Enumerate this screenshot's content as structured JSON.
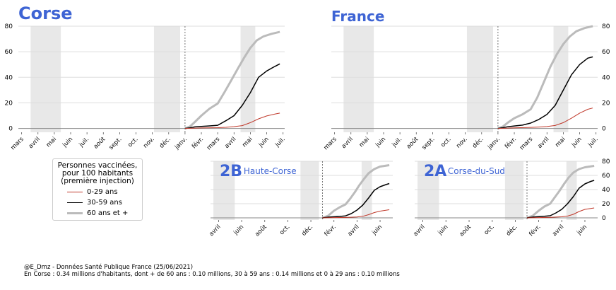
{
  "colors": {
    "young": "#c0392b",
    "middle": "#000000",
    "old": "#bbbbbb",
    "title": "#3e64d4",
    "shade": "#e8e8e8"
  },
  "legend": {
    "title_lines": [
      "Personnes vaccinées,",
      "pour 100 habitants",
      "(première injection)"
    ],
    "labels": [
      "0-29 ans",
      "30-59 ans",
      "60 ans et +"
    ]
  },
  "credit": {
    "line1": "@E_Dmz - Données Santé Publique France (25/06/2021)",
    "line2": "En Corse : 0.34 millions d'habitants, dont + de 60 ans : 0.10 millions, 30 à 59 ans : 0.14 millions et 0 à 29 ans : 0.10 millions"
  },
  "chart_data": [
    {
      "id": "corse",
      "type": "line",
      "title": "Corse",
      "code": "",
      "subtitle": "",
      "x_unit": "months since 2020-03-01",
      "xlim": [
        -0.2,
        16.1
      ],
      "ylim": [
        -3,
        80
      ],
      "yticks": [
        0,
        20,
        40,
        60,
        80
      ],
      "ytick_side": "left",
      "xticks": [
        "mars",
        "avril",
        "mai",
        "juin",
        "juil.",
        "août",
        "sept.",
        "oct.",
        "nov.",
        "déc.",
        "janv.",
        "févr.",
        "mars",
        "avril",
        "mai",
        "juin",
        "juil."
      ],
      "shaded": [
        [
          0.55,
          2.4
        ],
        [
          8.1,
          9.7
        ],
        [
          13.4,
          14.3
        ]
      ],
      "vline": 10.0,
      "series": [
        {
          "key": "young",
          "values": [
            [
              10,
              0
            ],
            [
              10.5,
              0.2
            ],
            [
              11,
              0.4
            ],
            [
              12,
              0.6
            ],
            [
              12.5,
              0.9
            ],
            [
              13,
              1.4
            ],
            [
              13.5,
              2.2
            ],
            [
              14,
              4.5
            ],
            [
              14.5,
              7.5
            ],
            [
              15,
              9.8
            ],
            [
              15.5,
              11.2
            ],
            [
              15.8,
              12
            ]
          ]
        },
        {
          "key": "middle",
          "values": [
            [
              10,
              0
            ],
            [
              10.3,
              0.5
            ],
            [
              10.6,
              1.2
            ],
            [
              11,
              1.6
            ],
            [
              11.5,
              2.0
            ],
            [
              12,
              2.5
            ],
            [
              12.5,
              6
            ],
            [
              13,
              10
            ],
            [
              13.5,
              18
            ],
            [
              14,
              28
            ],
            [
              14.5,
              40
            ],
            [
              15,
              45
            ],
            [
              15.5,
              48.5
            ],
            [
              15.8,
              50.5
            ]
          ]
        },
        {
          "key": "old",
          "values": [
            [
              10,
              0
            ],
            [
              10.3,
              1.5
            ],
            [
              10.6,
              5
            ],
            [
              11,
              10
            ],
            [
              11.5,
              15.5
            ],
            [
              12,
              19.5
            ],
            [
              12.4,
              28
            ],
            [
              12.8,
              37
            ],
            [
              13.2,
              46
            ],
            [
              13.6,
              55
            ],
            [
              14,
              63
            ],
            [
              14.4,
              69
            ],
            [
              14.8,
              72
            ],
            [
              15.3,
              74
            ],
            [
              15.8,
              75.5
            ]
          ]
        }
      ]
    },
    {
      "id": "france",
      "type": "line",
      "title": "France",
      "code": "",
      "subtitle": "",
      "x_unit": "months since 2020-03-01",
      "xlim": [
        -0.2,
        16.1
      ],
      "ylim": [
        -3,
        80
      ],
      "yticks": [
        0,
        20,
        40,
        60,
        80
      ],
      "ytick_side": "right",
      "xticks": [
        "mars",
        "avril",
        "mai",
        "juin",
        "juil.",
        "août",
        "sept.",
        "oct.",
        "nov.",
        "déc.",
        "janv.",
        "févr.",
        "mars",
        "avril",
        "mai",
        "juin",
        "juil."
      ],
      "shaded": [
        [
          0.55,
          2.4
        ],
        [
          8.1,
          9.7
        ],
        [
          13.4,
          14.3
        ]
      ],
      "vline": 10.0,
      "series": [
        {
          "key": "young",
          "values": [
            [
              10,
              0
            ],
            [
              10.5,
              0.2
            ],
            [
              11,
              0.5
            ],
            [
              12,
              0.8
            ],
            [
              12.5,
              1.1
            ],
            [
              13,
              1.5
            ],
            [
              13.5,
              2.3
            ],
            [
              14,
              4.5
            ],
            [
              14.5,
              8
            ],
            [
              15,
              12
            ],
            [
              15.5,
              15
            ],
            [
              15.8,
              16
            ]
          ]
        },
        {
          "key": "middle",
          "values": [
            [
              10,
              0
            ],
            [
              10.3,
              0.6
            ],
            [
              10.6,
              1.3
            ],
            [
              11,
              1.9
            ],
            [
              11.5,
              2.6
            ],
            [
              12,
              4.2
            ],
            [
              12.5,
              7
            ],
            [
              13,
              11
            ],
            [
              13.5,
              18
            ],
            [
              14,
              30
            ],
            [
              14.5,
              42
            ],
            [
              15,
              50
            ],
            [
              15.5,
              55
            ],
            [
              15.8,
              56
            ]
          ]
        },
        {
          "key": "old",
          "values": [
            [
              10,
              0
            ],
            [
              10.3,
              1.5
            ],
            [
              10.6,
              4.5
            ],
            [
              11,
              8
            ],
            [
              11.5,
              11
            ],
            [
              12,
              15
            ],
            [
              12.4,
              24
            ],
            [
              12.8,
              36
            ],
            [
              13.2,
              48
            ],
            [
              13.6,
              58
            ],
            [
              14,
              66
            ],
            [
              14.4,
              72
            ],
            [
              14.8,
              76
            ],
            [
              15.3,
              78.5
            ],
            [
              15.8,
              80
            ]
          ]
        }
      ]
    },
    {
      "id": "2b",
      "type": "line",
      "title": "",
      "code": "2B",
      "subtitle": "Haute-Corse",
      "x_unit": "months since 2020-03-01",
      "xlim": [
        0.3,
        16.1
      ],
      "ylim": [
        -3,
        80
      ],
      "yticks": [],
      "ytick_side": "none",
      "xticks": [
        "avril",
        "juin",
        "août",
        "oct.",
        "déc.",
        "févr.",
        "avril",
        "juin"
      ],
      "xtick_positions": [
        1,
        3,
        5,
        7,
        9,
        11,
        13,
        15
      ],
      "shaded": [
        [
          0.55,
          2.4
        ],
        [
          8.1,
          9.7
        ],
        [
          13.4,
          14.3
        ]
      ],
      "vline": 10.0,
      "series": [
        {
          "key": "young",
          "values": [
            [
              10,
              0
            ],
            [
              11,
              0.4
            ],
            [
              12,
              0.6
            ],
            [
              13,
              1.3
            ],
            [
              13.5,
              2.2
            ],
            [
              14,
              4.5
            ],
            [
              14.5,
              7.5
            ],
            [
              15,
              9.5
            ],
            [
              15.8,
              11.5
            ]
          ]
        },
        {
          "key": "middle",
          "values": [
            [
              10,
              0
            ],
            [
              10.6,
              1.1
            ],
            [
              11.5,
              2.0
            ],
            [
              12,
              2.8
            ],
            [
              12.5,
              6
            ],
            [
              13,
              11
            ],
            [
              13.5,
              18
            ],
            [
              14,
              28
            ],
            [
              14.5,
              39
            ],
            [
              15,
              44
            ],
            [
              15.5,
              47
            ],
            [
              15.8,
              48.5
            ]
          ]
        },
        {
          "key": "old",
          "values": [
            [
              10,
              0
            ],
            [
              10.5,
              3
            ],
            [
              11,
              10
            ],
            [
              11.5,
              15
            ],
            [
              12,
              19
            ],
            [
              12.4,
              27
            ],
            [
              12.8,
              36
            ],
            [
              13.2,
              46
            ],
            [
              13.6,
              55
            ],
            [
              14,
              63
            ],
            [
              14.5,
              69
            ],
            [
              15,
              72.5
            ],
            [
              15.8,
              74.5
            ]
          ]
        }
      ]
    },
    {
      "id": "2a",
      "type": "line",
      "title": "",
      "code": "2A",
      "subtitle": "Corse-du-Sud",
      "x_unit": "months since 2020-03-01",
      "xlim": [
        0.3,
        16.1
      ],
      "ylim": [
        -3,
        80
      ],
      "yticks": [
        0,
        20,
        40,
        60,
        80
      ],
      "ytick_side": "right",
      "xticks": [
        "avril",
        "juin",
        "août",
        "oct.",
        "déc.",
        "févr.",
        "avril",
        "juin"
      ],
      "xtick_positions": [
        1,
        3,
        5,
        7,
        9,
        11,
        13,
        15
      ],
      "shaded": [
        [
          0.55,
          2.4
        ],
        [
          8.1,
          9.7
        ],
        [
          13.4,
          14.3
        ]
      ],
      "vline": 10.0,
      "series": [
        {
          "key": "young",
          "values": [
            [
              10,
              0
            ],
            [
              11,
              0.4
            ],
            [
              12,
              0.7
            ],
            [
              13,
              1.5
            ],
            [
              13.5,
              2.5
            ],
            [
              14,
              5
            ],
            [
              14.5,
              9
            ],
            [
              15,
              12
            ],
            [
              15.8,
              14
            ]
          ]
        },
        {
          "key": "middle",
          "values": [
            [
              10,
              0
            ],
            [
              10.6,
              1.2
            ],
            [
              11.5,
              2.2
            ],
            [
              12,
              3
            ],
            [
              12.5,
              7
            ],
            [
              13,
              12
            ],
            [
              13.5,
              20
            ],
            [
              14,
              30
            ],
            [
              14.5,
              42
            ],
            [
              15,
              48
            ],
            [
              15.5,
              51.5
            ],
            [
              15.8,
              53
            ]
          ]
        },
        {
          "key": "old",
          "values": [
            [
              10,
              0
            ],
            [
              10.5,
              3
            ],
            [
              11,
              10
            ],
            [
              11.5,
              16
            ],
            [
              12,
              20
            ],
            [
              12.4,
              29
            ],
            [
              12.8,
              38
            ],
            [
              13.2,
              48
            ],
            [
              13.6,
              57
            ],
            [
              14,
              64
            ],
            [
              14.5,
              69
            ],
            [
              15,
              71.5
            ],
            [
              15.8,
              73.5
            ]
          ]
        }
      ]
    }
  ]
}
